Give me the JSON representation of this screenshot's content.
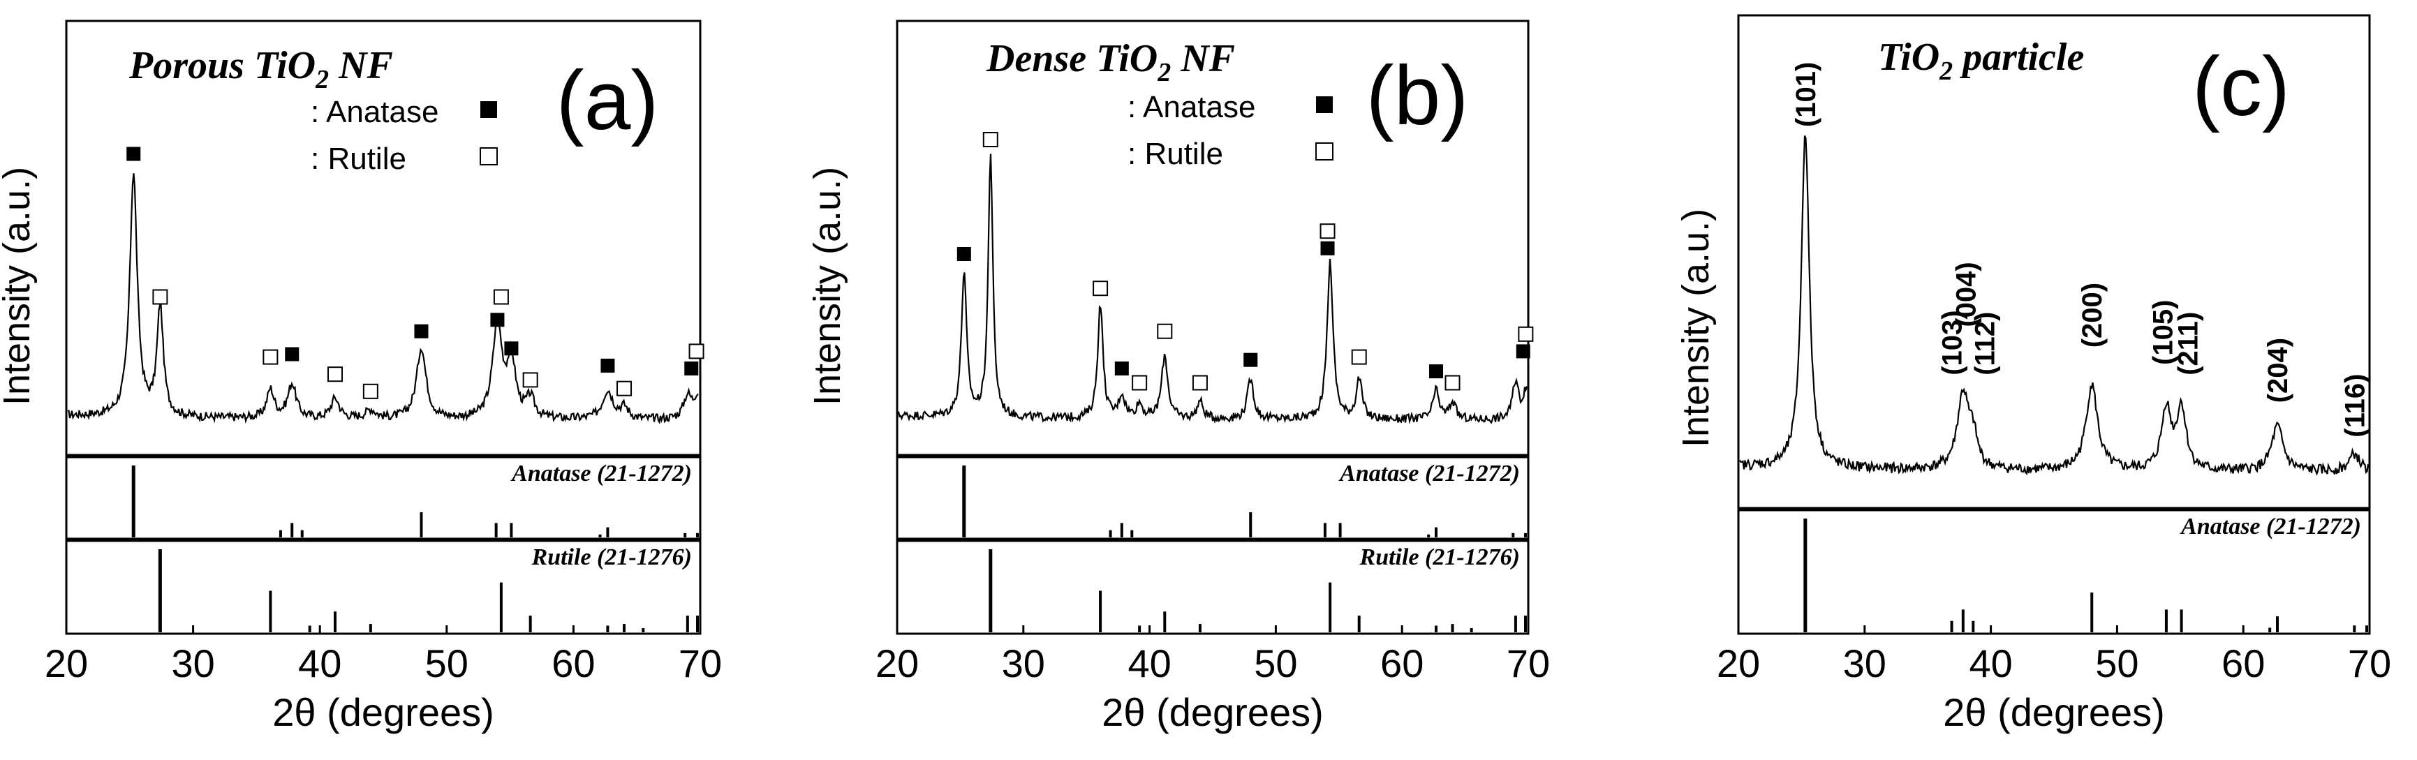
{
  "chart_data": [
    {
      "type": "line",
      "panel_label": "(a)",
      "title": "Porous TiO",
      "title_sub": "2",
      "title_suffix": " NF",
      "xlabel": "2θ (degrees)",
      "ylabel": "Intensity (a.u.)",
      "xlim": [
        20,
        70
      ],
      "xticks": [
        "20",
        "30",
        "40",
        "50",
        "60",
        "70"
      ],
      "legend": [
        {
          "label": ": Anatase",
          "marker": "filled-square"
        },
        {
          "label": ": Rutile",
          "marker": "open-square"
        }
      ],
      "peaks": [
        {
          "x": 25.3,
          "h": 0.85,
          "w": 0.35
        },
        {
          "x": 27.4,
          "h": 0.38,
          "w": 0.3
        },
        {
          "x": 36.1,
          "h": 0.1,
          "w": 0.35
        },
        {
          "x": 37.8,
          "h": 0.12,
          "w": 0.4
        },
        {
          "x": 41.2,
          "h": 0.07,
          "w": 0.4
        },
        {
          "x": 44.0,
          "h": 0.03,
          "w": 0.5
        },
        {
          "x": 48.0,
          "h": 0.25,
          "w": 0.45
        },
        {
          "x": 54.0,
          "h": 0.33,
          "w": 0.45
        },
        {
          "x": 55.1,
          "h": 0.2,
          "w": 0.4
        },
        {
          "x": 56.6,
          "h": 0.07,
          "w": 0.4
        },
        {
          "x": 62.7,
          "h": 0.1,
          "w": 0.5
        },
        {
          "x": 64.0,
          "h": 0.04,
          "w": 0.4
        },
        {
          "x": 69.0,
          "h": 0.08,
          "w": 0.4
        },
        {
          "x": 69.8,
          "h": 0.08,
          "w": 0.35
        }
      ],
      "markers": [
        {
          "x": 25.3,
          "level": 0.95,
          "type": "anatase"
        },
        {
          "x": 27.4,
          "level": 0.45,
          "type": "rutile"
        },
        {
          "x": 36.1,
          "level": 0.24,
          "type": "rutile"
        },
        {
          "x": 37.8,
          "level": 0.25,
          "type": "anatase"
        },
        {
          "x": 41.2,
          "level": 0.18,
          "type": "rutile"
        },
        {
          "x": 44.0,
          "level": 0.12,
          "type": "rutile"
        },
        {
          "x": 48.0,
          "level": 0.33,
          "type": "anatase"
        },
        {
          "x": 54.0,
          "level": 0.37,
          "type": "anatase"
        },
        {
          "x": 54.3,
          "level": 0.45,
          "type": "rutile"
        },
        {
          "x": 55.1,
          "level": 0.27,
          "type": "anatase"
        },
        {
          "x": 56.6,
          "level": 0.16,
          "type": "rutile"
        },
        {
          "x": 62.7,
          "level": 0.21,
          "type": "anatase"
        },
        {
          "x": 64.0,
          "level": 0.13,
          "type": "rutile"
        },
        {
          "x": 69.3,
          "level": 0.2,
          "type": "anatase"
        },
        {
          "x": 69.7,
          "level": 0.26,
          "type": "rutile"
        }
      ],
      "references": [
        {
          "name": "Anatase (21-1272)",
          "lines": [
            {
              "x": 25.3,
              "i": 1.0
            },
            {
              "x": 36.9,
              "i": 0.1
            },
            {
              "x": 37.8,
              "i": 0.2
            },
            {
              "x": 38.6,
              "i": 0.1
            },
            {
              "x": 48.0,
              "i": 0.35
            },
            {
              "x": 53.9,
              "i": 0.2
            },
            {
              "x": 55.1,
              "i": 0.2
            },
            {
              "x": 62.1,
              "i": 0.04
            },
            {
              "x": 62.7,
              "i": 0.14
            },
            {
              "x": 68.8,
              "i": 0.06
            },
            {
              "x": 70.3,
              "i": 0.06
            }
          ]
        },
        {
          "name": "Rutile (21-1276)",
          "lines": [
            {
              "x": 27.4,
              "i": 1.0
            },
            {
              "x": 36.1,
              "i": 0.5
            },
            {
              "x": 39.2,
              "i": 0.08
            },
            {
              "x": 41.2,
              "i": 0.25
            },
            {
              "x": 44.0,
              "i": 0.1
            },
            {
              "x": 54.3,
              "i": 0.6
            },
            {
              "x": 56.6,
              "i": 0.2
            },
            {
              "x": 62.7,
              "i": 0.08
            },
            {
              "x": 64.0,
              "i": 0.1
            },
            {
              "x": 65.5,
              "i": 0.05
            },
            {
              "x": 69.0,
              "i": 0.2
            },
            {
              "x": 69.8,
              "i": 0.2
            }
          ]
        }
      ]
    },
    {
      "type": "line",
      "panel_label": "(b)",
      "title": "Dense TiO",
      "title_sub": "2",
      "title_suffix": " NF",
      "xlabel": "2θ (degrees)",
      "ylabel": "Intensity (a.u.)",
      "xlim": [
        20,
        70
      ],
      "xticks": [
        "20",
        "30",
        "40",
        "50",
        "60",
        "70"
      ],
      "legend": [
        {
          "label": ": Anatase",
          "marker": "filled-square"
        },
        {
          "label": ": Rutile",
          "marker": "open-square"
        }
      ],
      "peaks": [
        {
          "x": 25.3,
          "h": 0.5,
          "w": 0.25
        },
        {
          "x": 27.4,
          "h": 0.92,
          "w": 0.22
        },
        {
          "x": 36.1,
          "h": 0.4,
          "w": 0.25
        },
        {
          "x": 37.8,
          "h": 0.08,
          "w": 0.3
        },
        {
          "x": 39.2,
          "h": 0.05,
          "w": 0.3
        },
        {
          "x": 41.2,
          "h": 0.22,
          "w": 0.3
        },
        {
          "x": 44.0,
          "h": 0.06,
          "w": 0.3
        },
        {
          "x": 48.0,
          "h": 0.14,
          "w": 0.3
        },
        {
          "x": 54.3,
          "h": 0.55,
          "w": 0.28
        },
        {
          "x": 56.6,
          "h": 0.14,
          "w": 0.28
        },
        {
          "x": 62.7,
          "h": 0.1,
          "w": 0.3
        },
        {
          "x": 64.0,
          "h": 0.06,
          "w": 0.3
        },
        {
          "x": 69.0,
          "h": 0.13,
          "w": 0.3
        },
        {
          "x": 69.8,
          "h": 0.1,
          "w": 0.25
        }
      ],
      "markers": [
        {
          "x": 25.3,
          "level": 0.6,
          "type": "anatase"
        },
        {
          "x": 27.4,
          "level": 1.0,
          "type": "rutile"
        },
        {
          "x": 36.1,
          "level": 0.48,
          "type": "rutile"
        },
        {
          "x": 37.8,
          "level": 0.2,
          "type": "anatase"
        },
        {
          "x": 39.2,
          "level": 0.15,
          "type": "rutile"
        },
        {
          "x": 41.2,
          "level": 0.33,
          "type": "rutile"
        },
        {
          "x": 44.0,
          "level": 0.15,
          "type": "rutile"
        },
        {
          "x": 48.0,
          "level": 0.23,
          "type": "anatase"
        },
        {
          "x": 54.1,
          "level": 0.62,
          "type": "anatase"
        },
        {
          "x": 54.1,
          "level": 0.68,
          "type": "rutile"
        },
        {
          "x": 56.6,
          "level": 0.24,
          "type": "rutile"
        },
        {
          "x": 62.7,
          "level": 0.19,
          "type": "anatase"
        },
        {
          "x": 64.0,
          "level": 0.15,
          "type": "rutile"
        },
        {
          "x": 69.6,
          "level": 0.26,
          "type": "anatase"
        },
        {
          "x": 69.8,
          "level": 0.32,
          "type": "rutile"
        }
      ],
      "references": [
        {
          "name": "Anatase (21-1272)",
          "lines": [
            {
              "x": 25.3,
              "i": 1.0
            },
            {
              "x": 36.9,
              "i": 0.1
            },
            {
              "x": 37.8,
              "i": 0.2
            },
            {
              "x": 38.6,
              "i": 0.1
            },
            {
              "x": 48.0,
              "i": 0.35
            },
            {
              "x": 53.9,
              "i": 0.2
            },
            {
              "x": 55.1,
              "i": 0.2
            },
            {
              "x": 62.1,
              "i": 0.04
            },
            {
              "x": 62.7,
              "i": 0.14
            },
            {
              "x": 68.8,
              "i": 0.06
            },
            {
              "x": 70.3,
              "i": 0.06
            }
          ]
        },
        {
          "name": "Rutile (21-1276)",
          "lines": [
            {
              "x": 27.4,
              "i": 1.0
            },
            {
              "x": 36.1,
              "i": 0.5
            },
            {
              "x": 39.2,
              "i": 0.08
            },
            {
              "x": 41.2,
              "i": 0.25
            },
            {
              "x": 44.0,
              "i": 0.1
            },
            {
              "x": 54.3,
              "i": 0.6
            },
            {
              "x": 56.6,
              "i": 0.2
            },
            {
              "x": 62.7,
              "i": 0.08
            },
            {
              "x": 64.0,
              "i": 0.1
            },
            {
              "x": 65.5,
              "i": 0.05
            },
            {
              "x": 69.0,
              "i": 0.2
            },
            {
              "x": 69.8,
              "i": 0.2
            }
          ]
        }
      ]
    },
    {
      "type": "line",
      "panel_label": "(c)",
      "title": "TiO",
      "title_sub": "2",
      "title_suffix": " particle",
      "xlabel": "2θ (degrees)",
      "ylabel": "Intensity (a.u.)",
      "xlim": [
        20,
        70
      ],
      "xticks": [
        "20",
        "30",
        "40",
        "50",
        "60",
        "70"
      ],
      "peaks": [
        {
          "x": 25.3,
          "h": 0.98,
          "w": 0.38
        },
        {
          "x": 37.8,
          "h": 0.22,
          "w": 0.55
        },
        {
          "x": 38.6,
          "h": 0.08,
          "w": 0.4
        },
        {
          "x": 48.0,
          "h": 0.25,
          "w": 0.55
        },
        {
          "x": 53.9,
          "h": 0.18,
          "w": 0.45
        },
        {
          "x": 55.1,
          "h": 0.18,
          "w": 0.45
        },
        {
          "x": 62.7,
          "h": 0.13,
          "w": 0.55
        },
        {
          "x": 68.8,
          "h": 0.05,
          "w": 0.5
        }
      ],
      "hkl_labels": [
        {
          "x": 25.3,
          "text": "(101)",
          "level": 1.02
        },
        {
          "x": 36.9,
          "text": "(103)",
          "level": 0.3
        },
        {
          "x": 38.0,
          "text": "(004)",
          "level": 0.44
        },
        {
          "x": 39.5,
          "text": "(112)",
          "level": 0.3
        },
        {
          "x": 48.0,
          "text": "(200)",
          "level": 0.38
        },
        {
          "x": 53.6,
          "text": "(105)",
          "level": 0.33
        },
        {
          "x": 55.6,
          "text": "(211)",
          "level": 0.3
        },
        {
          "x": 62.7,
          "text": "(204)",
          "level": 0.22
        },
        {
          "x": 68.8,
          "text": "(116)",
          "level": 0.12
        }
      ],
      "references": [
        {
          "name": "Anatase (21-1272)",
          "lines": [
            {
              "x": 25.3,
              "i": 1.0
            },
            {
              "x": 36.9,
              "i": 0.1
            },
            {
              "x": 37.8,
              "i": 0.2
            },
            {
              "x": 38.6,
              "i": 0.1
            },
            {
              "x": 48.0,
              "i": 0.35
            },
            {
              "x": 53.9,
              "i": 0.2
            },
            {
              "x": 55.1,
              "i": 0.2
            },
            {
              "x": 62.1,
              "i": 0.04
            },
            {
              "x": 62.7,
              "i": 0.14
            },
            {
              "x": 68.8,
              "i": 0.06
            },
            {
              "x": 70.3,
              "i": 0.06
            }
          ]
        }
      ]
    }
  ]
}
